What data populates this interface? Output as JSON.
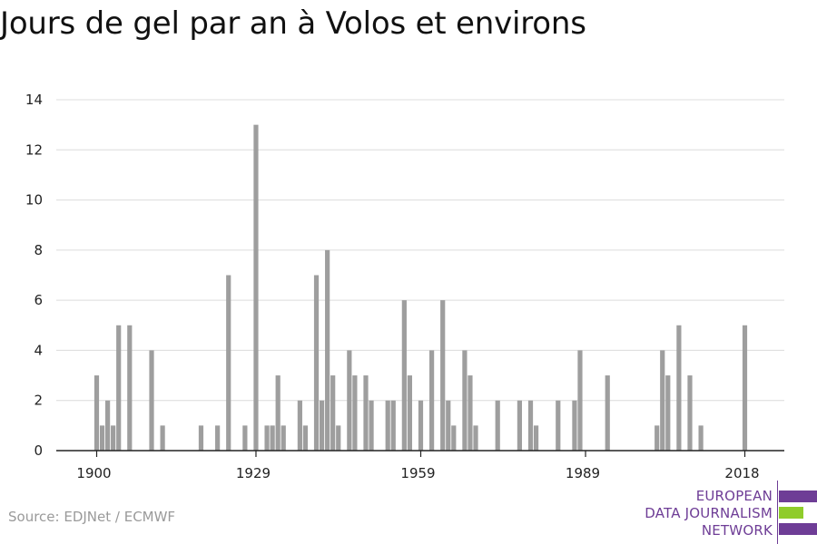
{
  "chart_data": {
    "type": "bar",
    "title": "Jours de gel par an à Volos et environs",
    "xlabel": "",
    "ylabel": "",
    "ylim": [
      0,
      14
    ],
    "xlim": [
      1900,
      2018
    ],
    "yticks": [
      0,
      2,
      4,
      6,
      8,
      10,
      12,
      14
    ],
    "xticks": [
      "1900",
      "1929",
      "1959",
      "1989",
      "2018"
    ],
    "grid": true,
    "color": "#9e9e9e",
    "x": [
      1900,
      1901,
      1902,
      1903,
      1904,
      1905,
      1906,
      1907,
      1908,
      1909,
      1910,
      1911,
      1912,
      1913,
      1914,
      1915,
      1916,
      1917,
      1918,
      1919,
      1920,
      1921,
      1922,
      1923,
      1924,
      1925,
      1926,
      1927,
      1928,
      1929,
      1930,
      1931,
      1932,
      1933,
      1934,
      1935,
      1936,
      1937,
      1938,
      1939,
      1940,
      1941,
      1942,
      1943,
      1944,
      1945,
      1946,
      1947,
      1948,
      1949,
      1950,
      1951,
      1952,
      1953,
      1954,
      1955,
      1956,
      1957,
      1958,
      1959,
      1960,
      1961,
      1962,
      1963,
      1964,
      1965,
      1966,
      1967,
      1968,
      1969,
      1970,
      1971,
      1972,
      1973,
      1974,
      1975,
      1976,
      1977,
      1978,
      1979,
      1980,
      1981,
      1982,
      1983,
      1984,
      1985,
      1986,
      1987,
      1988,
      1989,
      1990,
      1991,
      1992,
      1993,
      1994,
      1995,
      1996,
      1997,
      1998,
      1999,
      2000,
      2001,
      2002,
      2003,
      2004,
      2005,
      2006,
      2007,
      2008,
      2009,
      2010,
      2011,
      2012,
      2013,
      2014,
      2015,
      2016,
      2017,
      2018
    ],
    "values": [
      3,
      1,
      2,
      1,
      5,
      0,
      5,
      0,
      0,
      0,
      4,
      0,
      1,
      0,
      0,
      0,
      0,
      0,
      0,
      1,
      0,
      0,
      1,
      0,
      7,
      0,
      0,
      1,
      0,
      13,
      0,
      1,
      1,
      3,
      1,
      0,
      0,
      2,
      1,
      0,
      7,
      2,
      8,
      3,
      1,
      0,
      4,
      3,
      0,
      3,
      2,
      0,
      0,
      2,
      2,
      0,
      6,
      3,
      0,
      2,
      0,
      4,
      0,
      6,
      2,
      1,
      0,
      4,
      3,
      1,
      0,
      0,
      0,
      2,
      0,
      0,
      0,
      2,
      0,
      2,
      1,
      0,
      0,
      0,
      2,
      0,
      0,
      2,
      4,
      0,
      0,
      0,
      0,
      3,
      0,
      0,
      0,
      0,
      0,
      0,
      0,
      0,
      1,
      4,
      3,
      0,
      5,
      0,
      3,
      0,
      1,
      0,
      0,
      0,
      0,
      0,
      0,
      0,
      5
    ]
  },
  "source": "Source: EDJNet / ECMWF",
  "logo": {
    "lines": [
      "EUROPEAN",
      "DATA JOURNALISM",
      "NETWORK"
    ],
    "colors": {
      "purple": "#6e3d96",
      "green": "#8fcc2b"
    }
  }
}
